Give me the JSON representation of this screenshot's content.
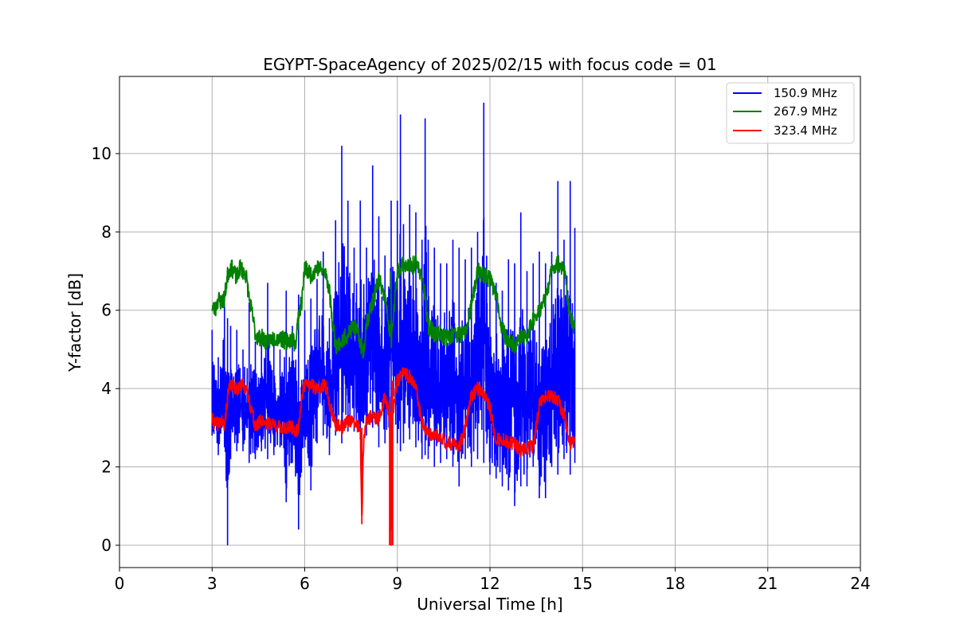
{
  "chart_data": {
    "type": "line",
    "title": "EGYPT-SpaceAgency of 2025/02/15 with focus code = 01",
    "xlabel": "Universal Time [h]",
    "ylabel": "Y-factor [dB]",
    "xlim": [
      0,
      24
    ],
    "ylim": [
      -0.57,
      11.97
    ],
    "xticks": [
      0,
      3,
      6,
      9,
      12,
      15,
      18,
      21,
      24
    ],
    "yticks": [
      0,
      2,
      4,
      6,
      8,
      10
    ],
    "grid": true,
    "legend_position": "upper right",
    "series": [
      {
        "name": "150.9 MHz",
        "color": "#0000ff",
        "x": [
          3.0,
          3.2,
          3.4,
          3.5,
          3.6,
          3.8,
          4.0,
          4.2,
          4.4,
          4.6,
          4.8,
          5.0,
          5.2,
          5.4,
          5.6,
          5.8,
          6.0,
          6.2,
          6.4,
          6.6,
          6.8,
          7.0,
          7.2,
          7.4,
          7.6,
          7.8,
          8.0,
          8.2,
          8.4,
          8.6,
          8.8,
          9.0,
          9.1,
          9.2,
          9.4,
          9.6,
          9.8,
          9.9,
          10.0,
          10.2,
          10.4,
          10.6,
          10.8,
          11.0,
          11.2,
          11.4,
          11.6,
          11.8,
          12.0,
          12.2,
          12.4,
          12.6,
          12.8,
          13.0,
          13.2,
          13.4,
          13.6,
          13.8,
          14.0,
          14.2,
          14.4,
          14.6,
          14.75
        ],
        "y_low": [
          2.8,
          2.3,
          2.5,
          0.0,
          2.2,
          2.4,
          2.4,
          2.1,
          2.2,
          2.4,
          2.2,
          2.3,
          2.5,
          1.1,
          2.1,
          0.4,
          2.5,
          1.4,
          2.6,
          2.8,
          2.3,
          2.8,
          2.6,
          2.9,
          2.9,
          2.7,
          2.8,
          3.0,
          2.5,
          2.6,
          2.8,
          2.6,
          2.4,
          2.6,
          2.7,
          2.5,
          2.2,
          2.3,
          2.2,
          2.0,
          2.1,
          2.2,
          2.0,
          1.5,
          2.2,
          2.0,
          2.2,
          2.1,
          1.8,
          1.7,
          1.5,
          1.4,
          1.0,
          1.5,
          1.5,
          2.0,
          1.2,
          1.2,
          2.0,
          1.8,
          2.2,
          1.8,
          2.1
        ],
        "y_high": [
          5.5,
          4.8,
          6.5,
          5.8,
          5.6,
          5.5,
          5.0,
          6.2,
          5.2,
          5.1,
          6.7,
          5.3,
          5.0,
          6.5,
          5.6,
          6.4,
          6.0,
          6.3,
          6.8,
          7.5,
          5.8,
          8.3,
          10.2,
          8.8,
          7.6,
          8.8,
          7.6,
          9.7,
          8.4,
          7.4,
          8.8,
          8.8,
          11.0,
          8.2,
          8.7,
          8.5,
          7.8,
          10.9,
          7.8,
          7.6,
          7.2,
          7.2,
          7.8,
          7.6,
          7.3,
          7.6,
          8.0,
          11.3,
          7.0,
          6.7,
          6.5,
          7.3,
          7.2,
          8.5,
          7.0,
          7.2,
          7.5,
          7.2,
          7.5,
          9.3,
          7.8,
          9.3,
          8.1
        ]
      },
      {
        "name": "267.9 MHz",
        "color": "#008000",
        "x": [
          3.0,
          3.1,
          3.2,
          3.3,
          3.4,
          3.5,
          3.6,
          3.7,
          3.8,
          3.9,
          4.0,
          4.1,
          4.2,
          4.3,
          4.4,
          4.5,
          4.6,
          4.8,
          5.0,
          5.2,
          5.4,
          5.6,
          5.7,
          5.8,
          5.9,
          6.0,
          6.1,
          6.2,
          6.4,
          6.6,
          6.7,
          6.8,
          6.9,
          7.0,
          7.2,
          7.4,
          7.6,
          7.8,
          7.9,
          8.0,
          8.2,
          8.4,
          8.6,
          8.8,
          9.0,
          9.2,
          9.4,
          9.6,
          9.8,
          10.0,
          10.2,
          10.4,
          10.6,
          10.8,
          11.0,
          11.2,
          11.4,
          11.6,
          11.8,
          12.0,
          12.2,
          12.4,
          12.6,
          12.8,
          13.0,
          13.2,
          13.4,
          13.6,
          13.8,
          14.0,
          14.2,
          14.4,
          14.6,
          14.75
        ],
        "y": [
          6.1,
          6.0,
          6.3,
          6.2,
          6.3,
          6.9,
          7.1,
          7.0,
          6.8,
          7.1,
          7.0,
          6.9,
          6.3,
          5.9,
          5.4,
          5.3,
          5.3,
          5.2,
          5.3,
          5.3,
          5.2,
          5.3,
          5.1,
          5.9,
          6.2,
          7.1,
          7.0,
          6.9,
          7.1,
          7.0,
          6.9,
          6.5,
          5.7,
          5.1,
          5.2,
          5.4,
          5.6,
          5.2,
          4.9,
          5.7,
          6.2,
          6.8,
          6.3,
          5.2,
          7.0,
          7.2,
          7.1,
          7.2,
          6.9,
          5.6,
          5.4,
          5.4,
          5.3,
          5.4,
          5.4,
          5.4,
          6.1,
          7.0,
          6.9,
          6.8,
          6.4,
          5.5,
          5.2,
          5.1,
          5.3,
          5.3,
          5.8,
          6.0,
          6.3,
          7.0,
          7.2,
          7.1,
          5.8,
          5.5
        ]
      },
      {
        "name": "323.4 MHz",
        "color": "#ff0000",
        "x": [
          3.0,
          3.1,
          3.2,
          3.3,
          3.4,
          3.5,
          3.6,
          3.8,
          4.0,
          4.1,
          4.2,
          4.3,
          4.4,
          4.6,
          4.8,
          5.0,
          5.2,
          5.4,
          5.6,
          5.7,
          5.8,
          5.9,
          6.0,
          6.2,
          6.4,
          6.6,
          6.7,
          6.8,
          7.0,
          7.2,
          7.4,
          7.6,
          7.8,
          7.85,
          7.9,
          8.0,
          8.2,
          8.4,
          8.6,
          8.75,
          8.8,
          8.85,
          9.0,
          9.2,
          9.4,
          9.6,
          9.8,
          10.0,
          10.2,
          10.4,
          10.6,
          10.8,
          11.0,
          11.2,
          11.4,
          11.6,
          11.8,
          12.0,
          12.2,
          12.4,
          12.6,
          12.8,
          13.0,
          13.2,
          13.4,
          13.6,
          13.8,
          14.0,
          14.2,
          14.4,
          14.6,
          14.75
        ],
        "y": [
          3.2,
          3.1,
          3.1,
          3.2,
          3.0,
          3.8,
          4.1,
          4.0,
          4.1,
          4.0,
          3.7,
          3.4,
          3.0,
          3.2,
          3.1,
          3.1,
          3.0,
          3.0,
          3.0,
          2.9,
          3.0,
          3.8,
          4.1,
          4.1,
          4.0,
          4.1,
          4.0,
          3.6,
          3.1,
          3.0,
          3.2,
          3.1,
          3.0,
          0.55,
          2.5,
          3.2,
          3.3,
          3.2,
          3.8,
          3.3,
          0.0,
          3.4,
          4.2,
          4.4,
          4.3,
          4.0,
          3.1,
          2.8,
          2.8,
          2.8,
          2.6,
          2.6,
          2.5,
          3.0,
          3.8,
          4.0,
          3.9,
          3.5,
          2.7,
          2.7,
          2.6,
          2.6,
          2.4,
          2.5,
          2.5,
          3.6,
          3.8,
          3.8,
          3.7,
          3.3,
          2.6,
          2.7
        ]
      }
    ]
  }
}
